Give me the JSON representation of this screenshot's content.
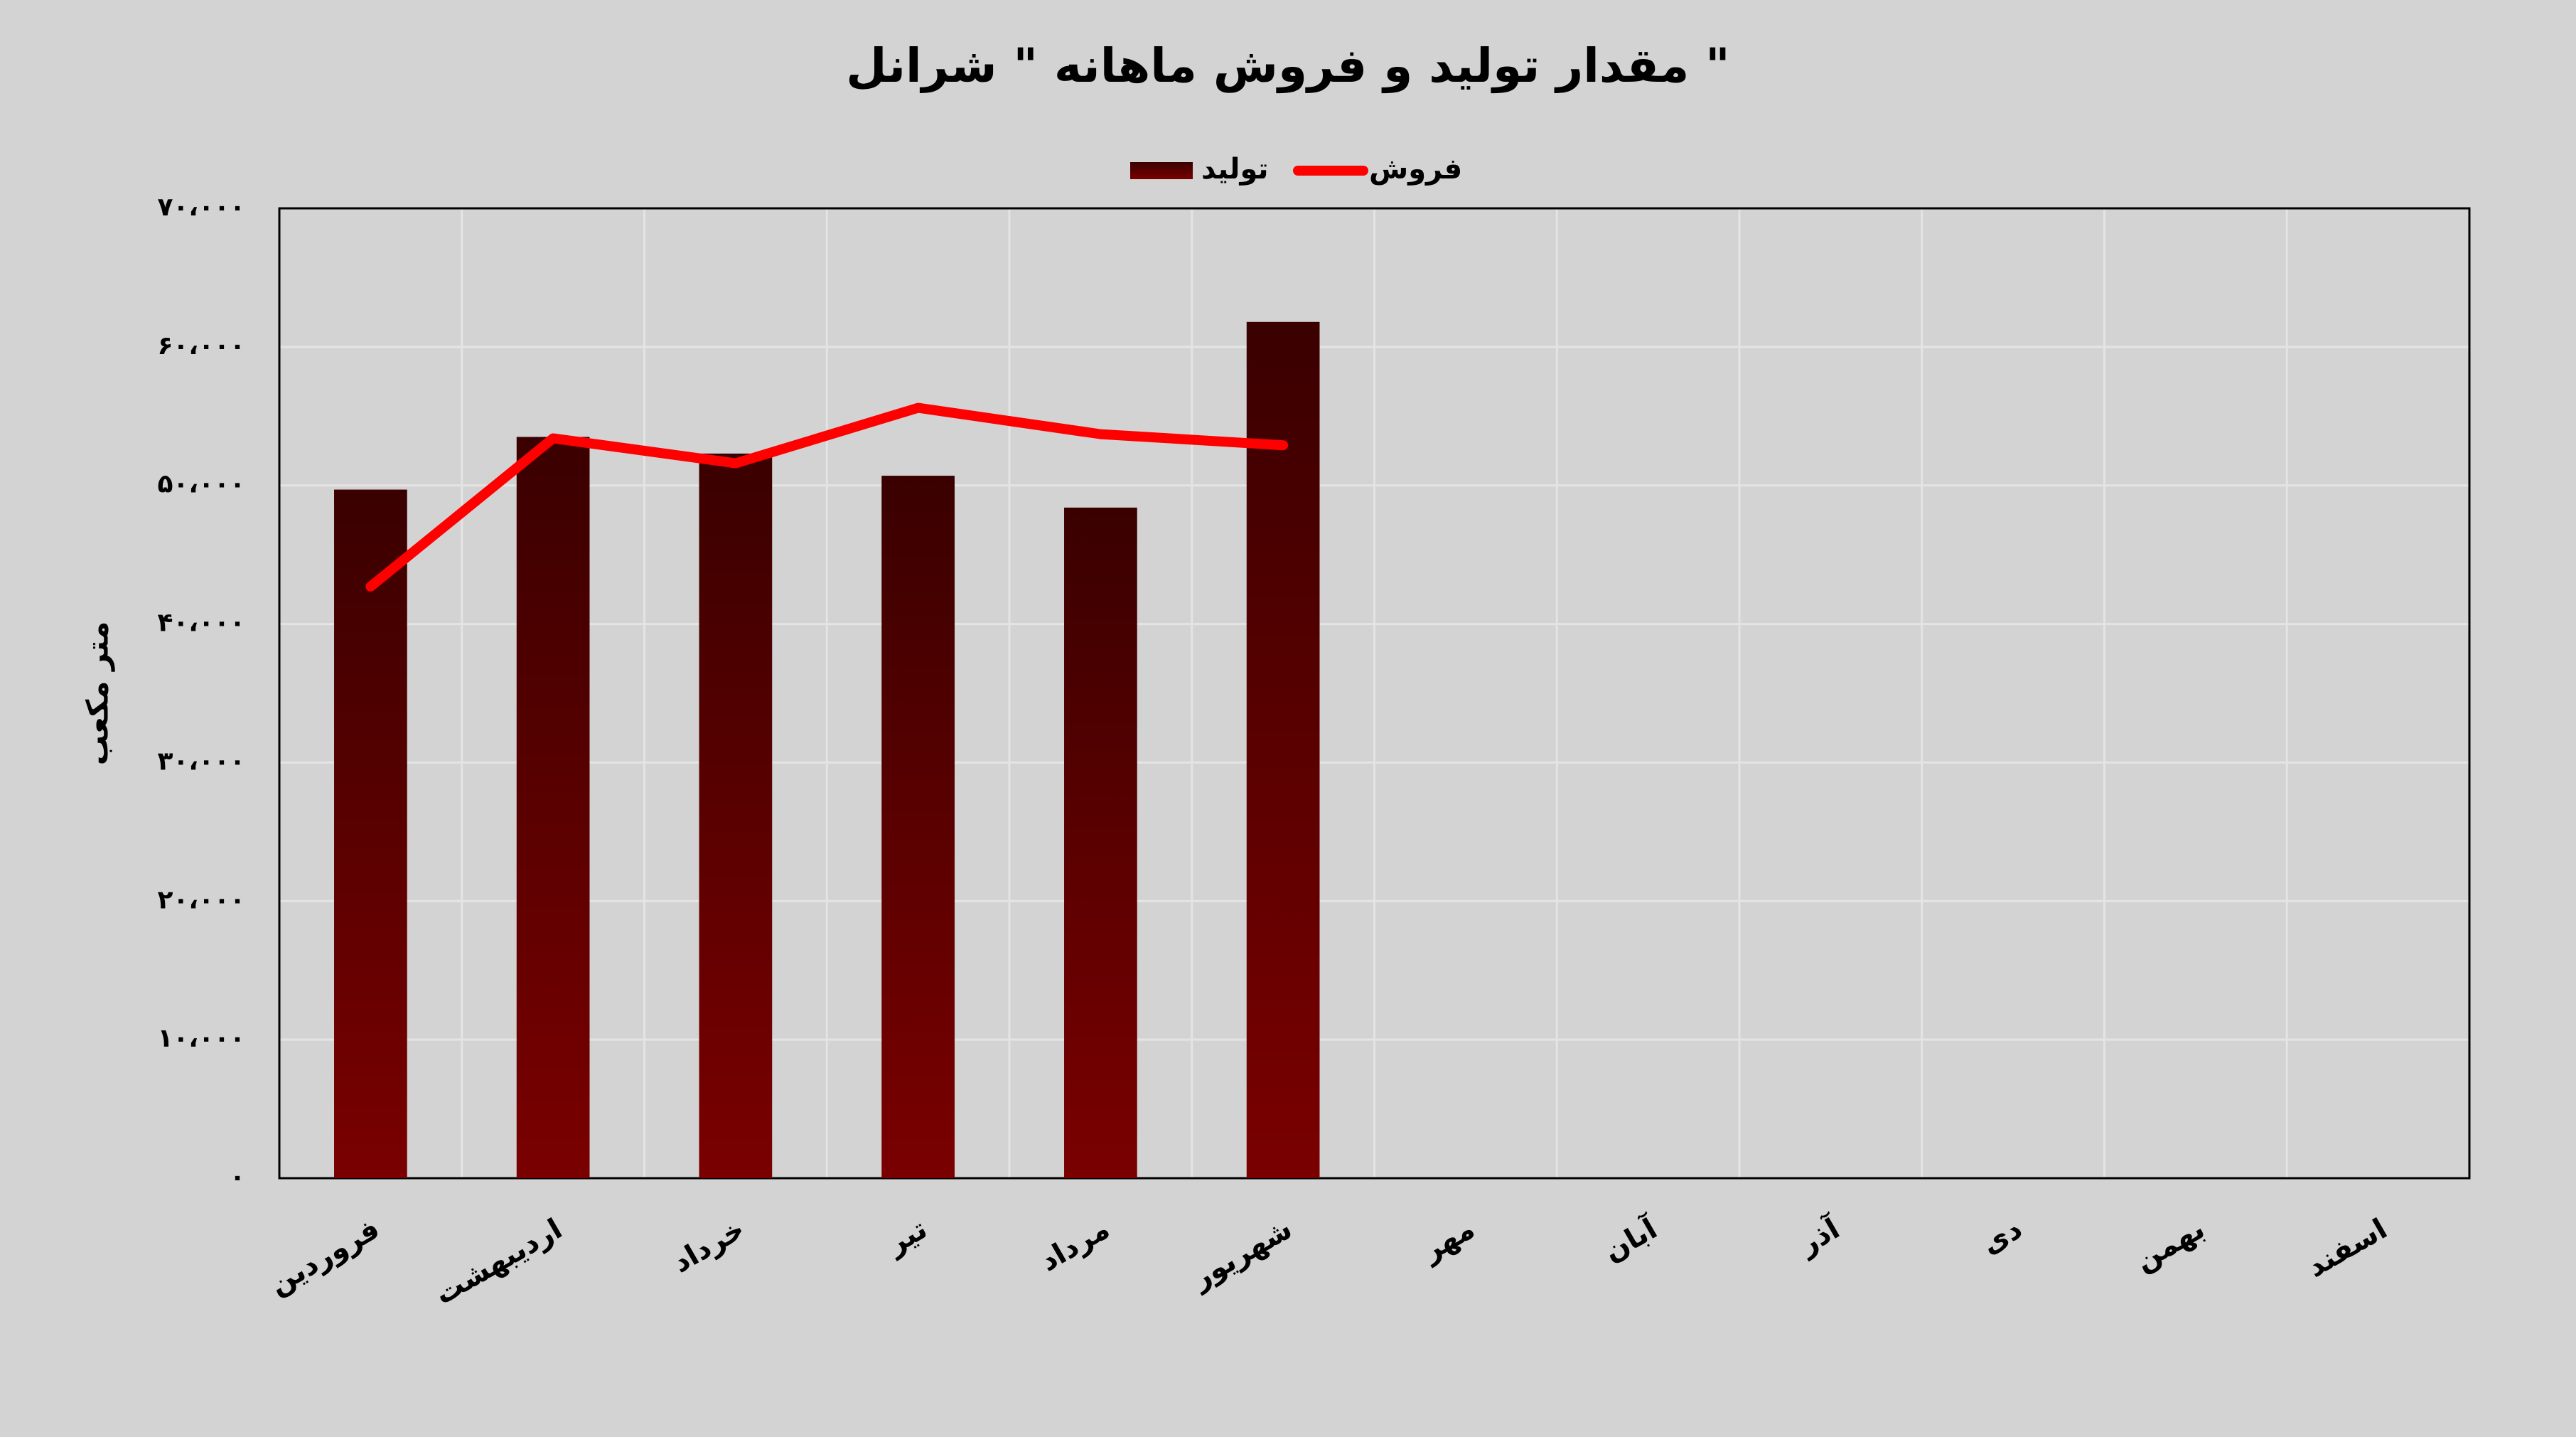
{
  "chart_data": {
    "type": "bar",
    "title": "مقدار تولید و فروش ماهانه \" شرانل \"",
    "y_label": "متر مکعب",
    "categories": [
      "فروردین",
      "اردیبهشت",
      "خرداد",
      "تیر",
      "مرداد",
      "شهریور",
      "مهر",
      "آبان",
      "آذر",
      "دی",
      "بهمن",
      "اسفند"
    ],
    "series": [
      {
        "name": "تولید",
        "type": "bar",
        "color": "#5a0000",
        "values": [
          49700,
          53500,
          52300,
          50700,
          48400,
          61800,
          null,
          null,
          null,
          null,
          null,
          null
        ]
      },
      {
        "name": "فروش",
        "type": "line",
        "color": "#ff0000",
        "values": [
          42700,
          53400,
          51600,
          55600,
          53700,
          52900,
          null,
          null,
          null,
          null,
          null,
          null
        ]
      }
    ],
    "ylim": [
      0,
      70000
    ],
    "yticks": [
      {
        "value": 0,
        "label": "۰"
      },
      {
        "value": 10000,
        "label": "۱۰،۰۰۰"
      },
      {
        "value": 20000,
        "label": "۲۰،۰۰۰"
      },
      {
        "value": 30000,
        "label": "۳۰،۰۰۰"
      },
      {
        "value": 40000,
        "label": "۴۰،۰۰۰"
      },
      {
        "value": 50000,
        "label": "۵۰،۰۰۰"
      },
      {
        "value": 60000,
        "label": "۶۰،۰۰۰"
      },
      {
        "value": 70000,
        "label": "۷۰،۰۰۰"
      }
    ],
    "grid": true,
    "legend": "top"
  }
}
